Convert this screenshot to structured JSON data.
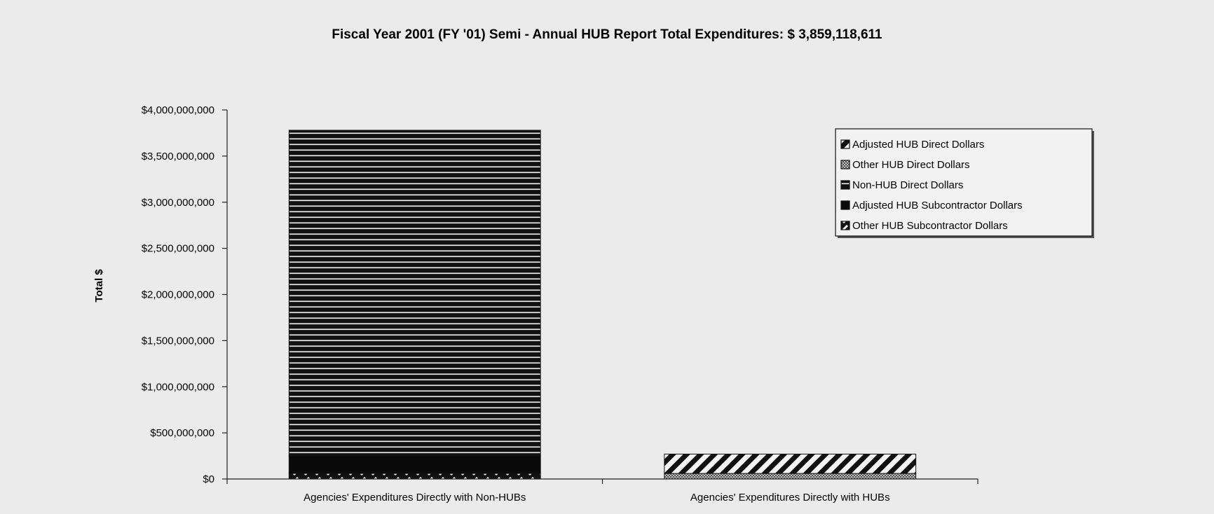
{
  "chart_data": {
    "type": "bar",
    "stacked": true,
    "title": "Fiscal Year 2001 (FY '01) Semi - Annual HUB Report Total Expenditures:  $ 3,859,118,611",
    "ylabel": "Total $",
    "xlabel": "",
    "ylim": [
      0,
      4000000000
    ],
    "y_ticks": [
      0,
      500000000,
      1000000000,
      1500000000,
      2000000000,
      2500000000,
      3000000000,
      3500000000,
      4000000000
    ],
    "y_tick_labels": [
      "$0",
      "$500,000,000",
      "$1,000,000,000",
      "$1,500,000,000",
      "$2,000,000,000",
      "$2,500,000,000",
      "$3,000,000,000",
      "$3,500,000,000",
      "$4,000,000,000"
    ],
    "categories": [
      "Agencies' Expenditures Directly with Non-HUBs",
      "Agencies' Expenditures Directly with HUBs"
    ],
    "series": [
      {
        "name": "Adjusted HUB Direct Dollars",
        "values": [
          0,
          210000000
        ],
        "pattern": "diagonal"
      },
      {
        "name": "Other HUB Direct Dollars",
        "values": [
          0,
          60000000
        ],
        "pattern": "crosshatch"
      },
      {
        "name": "Non-HUB Direct Dollars",
        "values": [
          3530000000,
          0
        ],
        "pattern": "horizontal"
      },
      {
        "name": "Adjusted HUB Subcontractor Dollars",
        "values": [
          190000000,
          0
        ],
        "pattern": "solid"
      },
      {
        "name": "Other HUB Subcontractor Dollars",
        "values": [
          60000000,
          0
        ],
        "pattern": "dashed"
      }
    ],
    "stack_order_bottom_to_top": [
      "Other HUB Subcontractor Dollars",
      "Adjusted HUB Subcontractor Dollars",
      "Other HUB Direct Dollars",
      "Adjusted HUB Direct Dollars",
      "Non-HUB Direct Dollars"
    ],
    "grid": false,
    "legend_position": "top-right"
  }
}
